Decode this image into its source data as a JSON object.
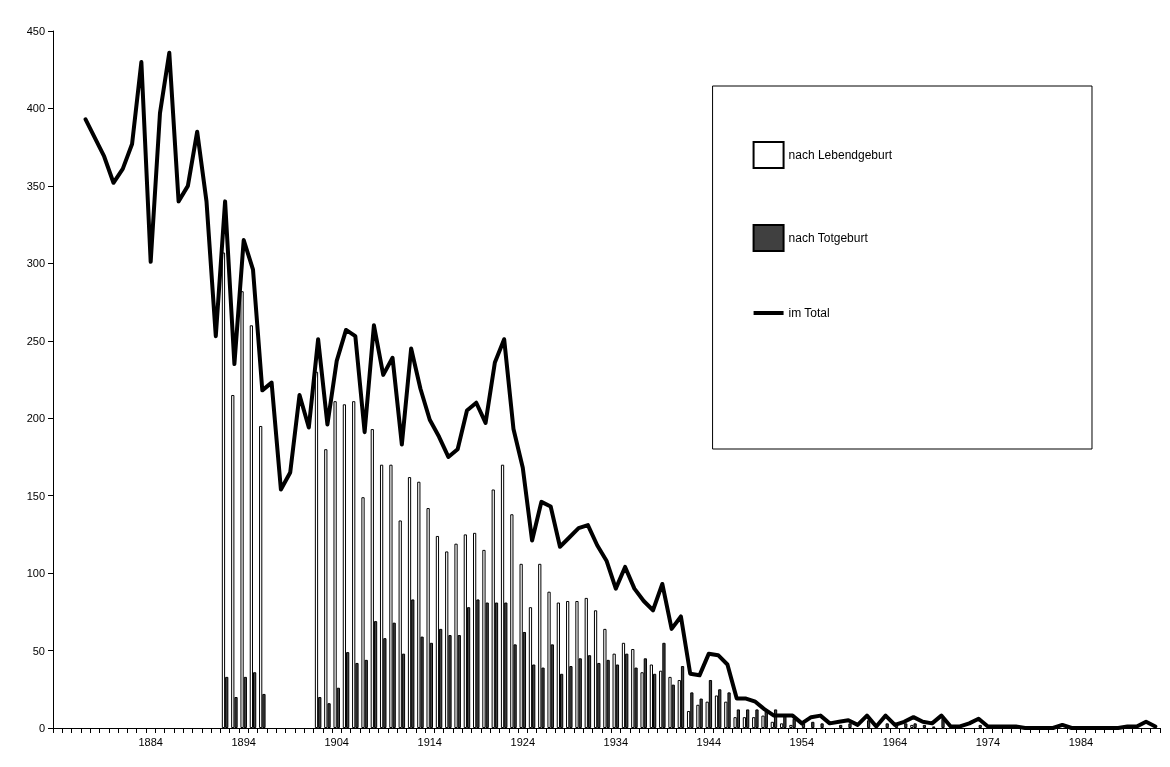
{
  "chart_data": {
    "type": "bar",
    "categories": [
      null,
      null,
      null,
      null,
      null,
      null,
      null,
      null,
      null,
      null,
      "1884",
      null,
      null,
      null,
      null,
      null,
      null,
      null,
      null,
      null,
      "1894",
      null,
      null,
      null,
      null,
      null,
      null,
      null,
      null,
      null,
      "1904",
      null,
      null,
      null,
      null,
      null,
      null,
      null,
      null,
      null,
      "1914",
      null,
      null,
      null,
      null,
      null,
      null,
      null,
      null,
      null,
      "1924",
      null,
      null,
      null,
      null,
      null,
      null,
      null,
      null,
      null,
      "1934",
      null,
      null,
      null,
      null,
      null,
      null,
      null,
      null,
      null,
      "1944",
      null,
      null,
      null,
      null,
      null,
      null,
      null,
      null,
      null,
      "1954",
      null,
      null,
      null,
      null,
      null,
      null,
      null,
      null,
      null,
      "1964",
      null,
      null,
      null,
      null,
      null,
      null,
      null,
      null,
      null,
      "1974",
      null,
      null,
      null,
      null,
      null,
      null,
      null,
      null,
      null,
      "1984",
      null,
      null,
      null,
      null,
      null,
      null,
      null,
      null
    ],
    "series": [
      {
        "name": "nach Lebendgeburt",
        "color": "#ffffff",
        "values": [
          null,
          null,
          null,
          null,
          null,
          null,
          null,
          null,
          null,
          null,
          null,
          null,
          null,
          null,
          null,
          null,
          null,
          null,
          307,
          215,
          282,
          260,
          195,
          null,
          null,
          null,
          null,
          null,
          230,
          180,
          211,
          209,
          211,
          149,
          193,
          170,
          170,
          134,
          162,
          159,
          142,
          124,
          114,
          119,
          125,
          126,
          115,
          154,
          170,
          138,
          106,
          78,
          106,
          88,
          81,
          82,
          82,
          84,
          76,
          64,
          48,
          55,
          51,
          36,
          41,
          37,
          33,
          31,
          11,
          15,
          17,
          21,
          17,
          7,
          7,
          7,
          8,
          4,
          3,
          2,
          null,
          null,
          null,
          null,
          null,
          null,
          null,
          null,
          null,
          null,
          null,
          null,
          2,
          null,
          null,
          null,
          null,
          null,
          null,
          null,
          null,
          null,
          null,
          null,
          null,
          null,
          null,
          null,
          null,
          null,
          null,
          null,
          null,
          null,
          null,
          null,
          null,
          null,
          null
        ]
      },
      {
        "name": "nach Totgeburt",
        "color": "#404040",
        "values": [
          null,
          null,
          null,
          null,
          null,
          null,
          null,
          null,
          null,
          null,
          null,
          null,
          null,
          null,
          null,
          null,
          null,
          null,
          33,
          20,
          33,
          36,
          22,
          null,
          null,
          null,
          null,
          null,
          20,
          16,
          26,
          49,
          42,
          44,
          69,
          58,
          68,
          48,
          83,
          59,
          55,
          64,
          60,
          60,
          78,
          83,
          81,
          81,
          81,
          54,
          62,
          41,
          39,
          54,
          35,
          40,
          45,
          47,
          42,
          44,
          41,
          48,
          39,
          45,
          35,
          55,
          28,
          40,
          23,
          19,
          31,
          25,
          23,
          12,
          12,
          12,
          11,
          12,
          9,
          6,
          3,
          4,
          3,
          null,
          2,
          3,
          null,
          5,
          null,
          3,
          2,
          3,
          3,
          2,
          1,
          6,
          null,
          null,
          null,
          2,
          null,
          null,
          null,
          null,
          null,
          null,
          null,
          null,
          null,
          null,
          null,
          null,
          null,
          null,
          null,
          null,
          null,
          null,
          null
        ]
      },
      {
        "name": "im Total",
        "type": "line",
        "color": "#000000",
        "values": [
          null,
          null,
          null,
          393,
          381,
          369,
          352,
          361,
          377,
          430,
          301,
          397,
          436,
          340,
          350,
          385,
          340,
          253,
          340,
          235,
          315,
          296,
          218,
          223,
          154,
          165,
          215,
          194,
          251,
          196,
          237,
          257,
          253,
          191,
          260,
          228,
          239,
          183,
          245,
          219,
          199,
          188,
          175,
          180,
          205,
          210,
          197,
          236,
          251,
          193,
          168,
          121,
          146,
          143,
          117,
          123,
          129,
          131,
          118,
          108,
          90,
          104,
          90,
          82,
          76,
          93,
          64,
          72,
          35,
          34,
          48,
          47,
          41,
          19,
          19,
          17,
          12,
          8,
          8,
          8,
          3,
          7,
          8,
          3,
          4,
          5,
          2,
          8,
          1,
          8,
          2,
          4,
          7,
          4,
          3,
          8,
          1,
          1,
          3,
          6,
          1,
          1,
          1,
          1,
          0,
          0,
          0,
          0,
          2,
          0,
          0,
          0,
          0,
          0,
          0,
          1,
          1,
          4,
          1
        ]
      }
    ],
    "ylim": [
      0,
      450
    ],
    "yticks": [
      0,
      50,
      100,
      150,
      200,
      250,
      300,
      350,
      400,
      450
    ],
    "grid": false,
    "legend": "top right",
    "marker": "none",
    "line_style": "solid"
  }
}
